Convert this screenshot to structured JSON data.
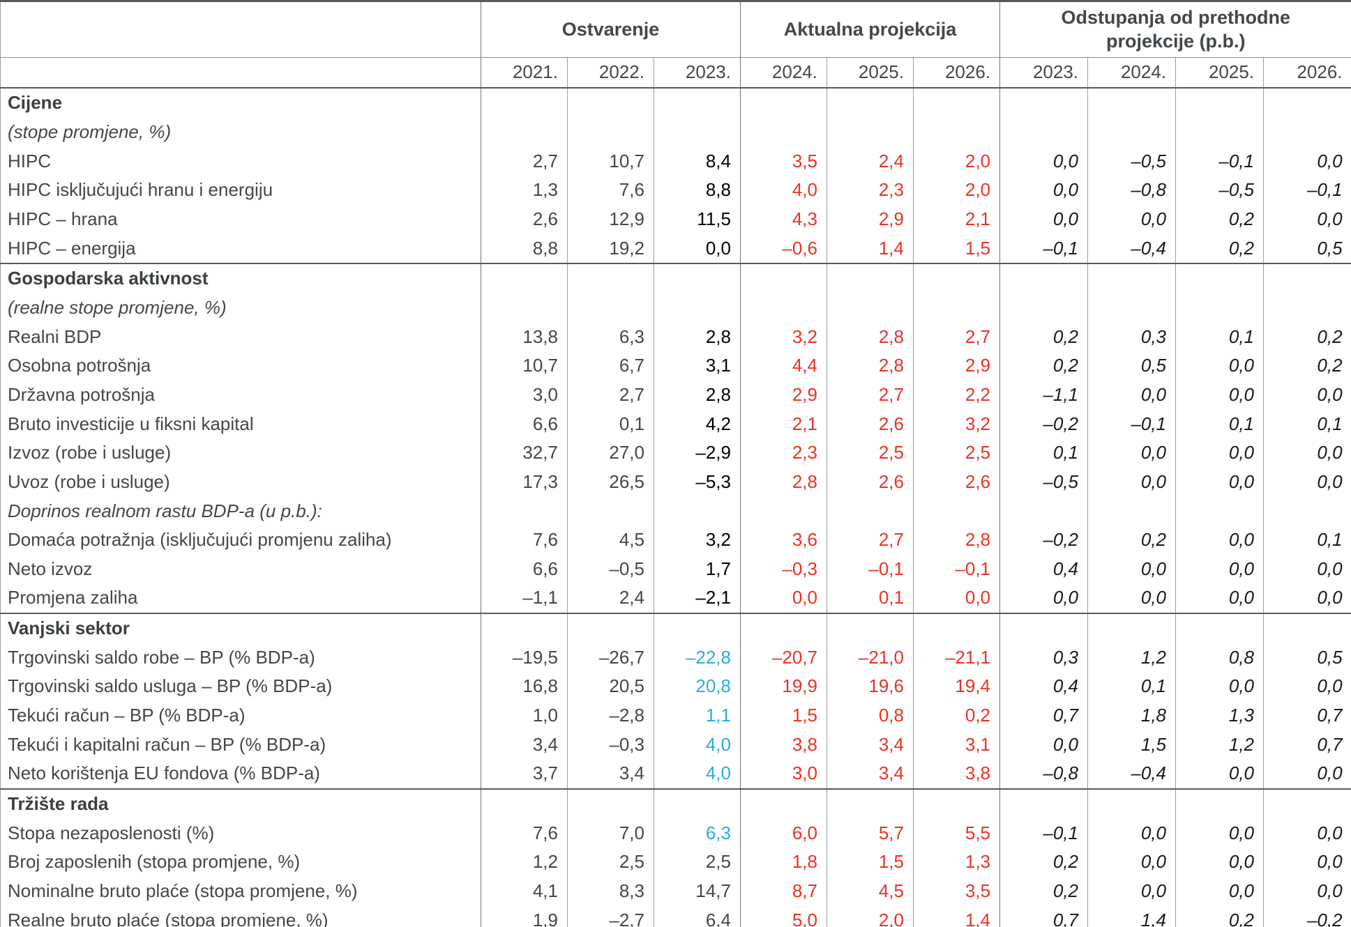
{
  "colors": {
    "label_gray": "#42474d",
    "actual_2023_black": "#000000",
    "estimate_2023_blue": "#2aabe2",
    "projection_red": "#ed3124",
    "deviation_italic": "#1a1a1a",
    "rule_dark": "#58595b",
    "rule_light": "#9b9da0"
  },
  "header": {
    "groups": [
      {
        "label": "Ostvarenje",
        "colspan": 3
      },
      {
        "label": "Aktualna projekcija",
        "colspan": 3
      },
      {
        "label": "Odstupanja od prethodne projekcije (p.b.)",
        "colspan": 4
      }
    ],
    "years": [
      "2021.",
      "2022.",
      "2023.",
      "2024.",
      "2025.",
      "2026.",
      "2023.",
      "2024.",
      "2025.",
      "2026."
    ]
  },
  "rows": [
    {
      "label": "Cijene",
      "style": "section",
      "values": null
    },
    {
      "label": "(stope promjene, %)",
      "style": "note",
      "values": null
    },
    {
      "label": "HIPC",
      "style": "normal",
      "y2023": "black",
      "values": [
        "2,7",
        "10,7",
        "8,4",
        "3,5",
        "2,4",
        "2,0",
        "0,0",
        "–0,5",
        "–0,1",
        "0,0"
      ]
    },
    {
      "label": "HIPC isključujući hranu i energiju",
      "style": "normal",
      "y2023": "black",
      "values": [
        "1,3",
        "7,6",
        "8,8",
        "4,0",
        "2,3",
        "2,0",
        "0,0",
        "–0,8",
        "–0,5",
        "–0,1"
      ]
    },
    {
      "label": "HIPC – hrana",
      "style": "normal",
      "y2023": "black",
      "values": [
        "2,6",
        "12,9",
        "11,5",
        "4,3",
        "2,9",
        "2,1",
        "0,0",
        "0,0",
        "0,2",
        "0,0"
      ]
    },
    {
      "label": "HIPC – energija",
      "style": "normal",
      "y2023": "black",
      "values": [
        "8,8",
        "19,2",
        "0,0",
        "–0,6",
        "1,4",
        "1,5",
        "–0,1",
        "–0,4",
        "0,2",
        "0,5"
      ]
    },
    {
      "label": "Gospodarska aktivnost",
      "style": "section",
      "section_start": true,
      "values": null
    },
    {
      "label": "(realne stope promjene, %)",
      "style": "note",
      "values": null
    },
    {
      "label": "Realni BDP",
      "style": "normal",
      "y2023": "black",
      "values": [
        "13,8",
        "6,3",
        "2,8",
        "3,2",
        "2,8",
        "2,7",
        "0,2",
        "0,3",
        "0,1",
        "0,2"
      ]
    },
    {
      "label": "Osobna potrošnja",
      "style": "normal",
      "y2023": "black",
      "values": [
        "10,7",
        "6,7",
        "3,1",
        "4,4",
        "2,8",
        "2,9",
        "0,2",
        "0,5",
        "0,0",
        "0,2"
      ]
    },
    {
      "label": "Državna potrošnja",
      "style": "normal",
      "y2023": "black",
      "values": [
        "3,0",
        "2,7",
        "2,8",
        "2,9",
        "2,7",
        "2,2",
        "–1,1",
        "0,0",
        "0,0",
        "0,0"
      ]
    },
    {
      "label": "Bruto investicije u fiksni kapital",
      "style": "normal",
      "y2023": "black",
      "values": [
        "6,6",
        "0,1",
        "4,2",
        "2,1",
        "2,6",
        "3,2",
        "–0,2",
        "–0,1",
        "0,1",
        "0,1"
      ]
    },
    {
      "label": "Izvoz (robe i usluge)",
      "style": "normal",
      "y2023": "black",
      "values": [
        "32,7",
        "27,0",
        "–2,9",
        "2,3",
        "2,5",
        "2,5",
        "0,1",
        "0,0",
        "0,0",
        "0,0"
      ]
    },
    {
      "label": "Uvoz (robe i usluge)",
      "style": "normal",
      "y2023": "black",
      "values": [
        "17,3",
        "26,5",
        "–5,3",
        "2,8",
        "2,6",
        "2,6",
        "–0,5",
        "0,0",
        "0,0",
        "0,0"
      ]
    },
    {
      "label": "Doprinos realnom rastu BDP-a (u p.b.):",
      "style": "note",
      "values": null
    },
    {
      "label": "Domaća potražnja (isključujući promjenu zaliha)",
      "style": "normal",
      "y2023": "black",
      "values": [
        "7,6",
        "4,5",
        "3,2",
        "3,6",
        "2,7",
        "2,8",
        "–0,2",
        "0,2",
        "0,0",
        "0,1"
      ]
    },
    {
      "label": "Neto izvoz",
      "style": "normal",
      "y2023": "black",
      "values": [
        "6,6",
        "–0,5",
        "1,7",
        "–0,3",
        "–0,1",
        "–0,1",
        "0,4",
        "0,0",
        "0,0",
        "0,0"
      ]
    },
    {
      "label": "Promjena zaliha",
      "style": "normal",
      "y2023": "black",
      "values": [
        "–1,1",
        "2,4",
        "–2,1",
        "0,0",
        "0,1",
        "0,0",
        "0,0",
        "0,0",
        "0,0",
        "0,0"
      ]
    },
    {
      "label": "Vanjski sektor",
      "style": "section",
      "section_start": true,
      "values": null
    },
    {
      "label": "Trgovinski saldo robe – BP (% BDP-a)",
      "style": "normal",
      "y2023": "blue",
      "values": [
        "–19,5",
        "–26,7",
        "–22,8",
        "–20,7",
        "–21,0",
        "–21,1",
        "0,3",
        "1,2",
        "0,8",
        "0,5"
      ]
    },
    {
      "label": "Trgovinski saldo usluga – BP (% BDP-a)",
      "style": "normal",
      "y2023": "blue",
      "values": [
        "16,8",
        "20,5",
        "20,8",
        "19,9",
        "19,6",
        "19,4",
        "0,4",
        "0,1",
        "0,0",
        "0,0"
      ]
    },
    {
      "label": "Tekući račun – BP (% BDP-a)",
      "style": "normal",
      "y2023": "blue",
      "values": [
        "1,0",
        "–2,8",
        "1,1",
        "1,5",
        "0,8",
        "0,2",
        "0,7",
        "1,8",
        "1,3",
        "0,7"
      ]
    },
    {
      "label": "Tekući i kapitalni račun – BP (% BDP-a)",
      "style": "normal",
      "y2023": "blue",
      "values": [
        "3,4",
        "–0,3",
        "4,0",
        "3,8",
        "3,4",
        "3,1",
        "0,0",
        "1,5",
        "1,2",
        "0,7"
      ]
    },
    {
      "label": "Neto korištenja EU fondova (% BDP-a)",
      "style": "normal",
      "y2023": "blue",
      "values": [
        "3,7",
        "3,4",
        "4,0",
        "3,0",
        "3,4",
        "3,8",
        "–0,8",
        "–0,4",
        "0,0",
        "0,0"
      ]
    },
    {
      "label": "Tržište rada",
      "style": "section",
      "section_start": true,
      "values": null
    },
    {
      "label": "Stopa nezaposlenosti (%)",
      "style": "normal",
      "y2023": "blue",
      "values": [
        "7,6",
        "7,0",
        "6,3",
        "6,0",
        "5,7",
        "5,5",
        "–0,1",
        "0,0",
        "0,0",
        "0,0"
      ]
    },
    {
      "label": "Broj zaposlenih (stopa promjene, %)",
      "style": "normal",
      "y2023": "gray",
      "values": [
        "1,2",
        "2,5",
        "2,5",
        "1,8",
        "1,5",
        "1,3",
        "0,2",
        "0,0",
        "0,0",
        "0,0"
      ]
    },
    {
      "label": "Nominalne bruto plaće (stopa promjene, %)",
      "style": "normal",
      "y2023": "gray",
      "values": [
        "4,1",
        "8,3",
        "14,7",
        "8,7",
        "4,5",
        "3,5",
        "0,2",
        "0,0",
        "0,0",
        "0,0"
      ]
    },
    {
      "label": "Realne bruto plaće (stopa promjene, %)",
      "style": "normal",
      "y2023": "gray",
      "values": [
        "1,9",
        "–2,7",
        "6,4",
        "5,0",
        "2,0",
        "1,4",
        "0,7",
        "1,4",
        "0,2",
        "–0,2"
      ]
    }
  ]
}
